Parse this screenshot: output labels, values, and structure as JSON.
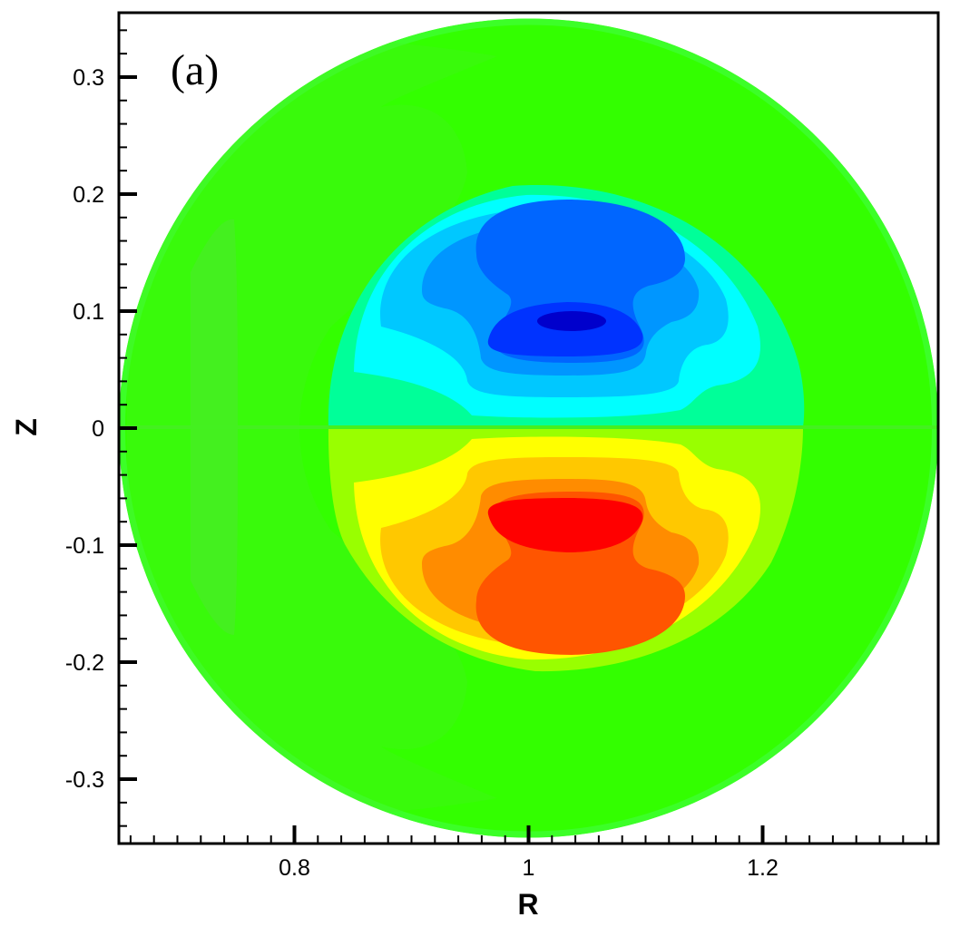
{
  "chart_data": {
    "type": "heatmap",
    "panel_label": "(a)",
    "xlabel": "R",
    "ylabel": "Z",
    "xlim": [
      0.65,
      1.35
    ],
    "ylim": [
      -0.355,
      0.355
    ],
    "xticks": [
      0.8,
      1,
      1.2
    ],
    "xtick_labels": [
      "0.8",
      "1",
      "1.2"
    ],
    "yticks": [
      0.3,
      0.2,
      0.1,
      0,
      -0.1,
      -0.2,
      -0.3
    ],
    "ytick_labels": [
      "0.3",
      "0.2",
      "0.1",
      "0",
      "-0.1",
      "-0.2",
      "-0.3"
    ],
    "grid": false,
    "legend": "none",
    "domain": {
      "shape": "circle",
      "center_R": 1.0,
      "center_Z": 0.0,
      "radius": 0.35
    },
    "colors": {
      "background_level": "#33ff00",
      "outer_edge": "#3cff28",
      "faint_band": "#44f020",
      "neg_1": "#00ff99",
      "neg_2": "#00ffff",
      "neg_3": "#00c8ff",
      "neg_4": "#0096ff",
      "neg_5": "#0066ff",
      "neg_6": "#0033ff",
      "neg_7": "#0000cc",
      "pos_1": "#99ff00",
      "pos_2": "#ffff00",
      "pos_3": "#ffc800",
      "pos_4": "#ff8c00",
      "pos_5": "#ff5500",
      "pos_6": "#ff0000"
    }
  }
}
